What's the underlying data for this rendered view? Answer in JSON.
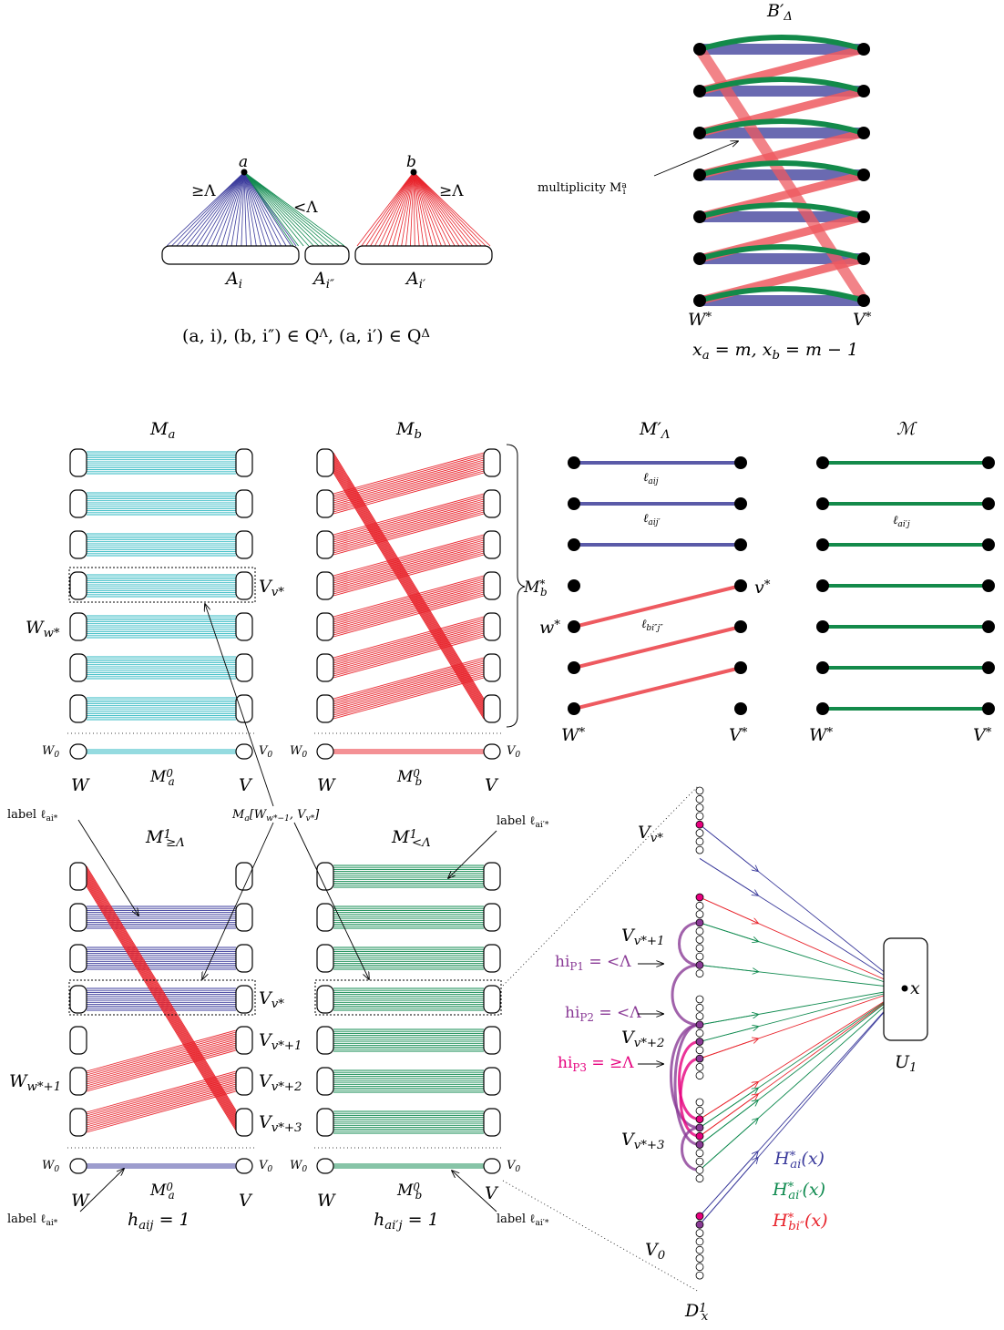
{
  "colors": {
    "blue": "#3b3b9c",
    "green": "#0f8a4f",
    "teal": "#2bb7c1",
    "red": "#e8232b",
    "magenta": "#e6007e",
    "purple": "#8a3b96",
    "blue_thick": "#5a5aa8",
    "red_thick": "#ee5a60",
    "green_thick": "#138a4a"
  },
  "top_left": {
    "vertex_a": "a",
    "vertex_b": "b",
    "label_geq": "≥Λ",
    "label_lt": "<Λ",
    "label_geq_b": "≥Λ",
    "set_ai": "Ai",
    "set_ai2": "Ai″",
    "set_ai1": "Ai′",
    "caption": "(a, i), (b, i″) ∈ QΛ,  (a, i′) ∈ QΔ"
  },
  "top_right": {
    "title": "B′Δ",
    "multiplicity": "multiplicity Mai",
    "left_label": "W*",
    "right_label": "V*",
    "caption": "xa = m,  xb = m − 1"
  },
  "panels": {
    "ma_title": "Ma",
    "mb_title": "Mb",
    "m0a": "M0a",
    "m0b": "M0b",
    "w_label": "W",
    "v_label": "V",
    "w0": "W0",
    "v0": "V0",
    "v_vstar": "Vv*",
    "w_wstar": "Ww*",
    "mb_star": "M*b",
    "ma_sub": "Ma[Ww*−1, Vv*]",
    "mlambda_title": "M′Λ",
    "mcal_title": "ℳ",
    "l_aij": "ℓaij",
    "l_aij2": "ℓaij′",
    "l_bij": "ℓbi″j″",
    "l_aj": "ℓai′j",
    "vstar": "v*",
    "wstar": "w*",
    "wstar_cap": "W*",
    "vstar_cap": "V*"
  },
  "bottom": {
    "m1geq_title": "M1≥Λ",
    "m1lt_title": "M1<Λ",
    "label_ai": "label ℓai*",
    "label_ai1": "label ℓai′*",
    "hij": "haij = 1",
    "hj": "hai′j = 1",
    "v1": "Vv*+1",
    "v2": "Vv*+2",
    "v3": "Vv*+3",
    "w1": "Ww*+1"
  },
  "right_bottom": {
    "v_vstar": "Vv*",
    "v_vstar1": "Vv*+1",
    "v_vstar2": "Vv*+2",
    "v_vstar3": "Vv*+3",
    "v0": "V0",
    "hi1": "hiP1 = <Λ",
    "hi2": "hiP2 = <Λ",
    "hi3": "hiP3 = ≥Λ",
    "x": "x",
    "u1": "U1",
    "dx": "D1x",
    "h_ai": "H*ai(x)",
    "h_ai1": "H*ai′(x)",
    "h_bi": "H*bi″(x)"
  }
}
